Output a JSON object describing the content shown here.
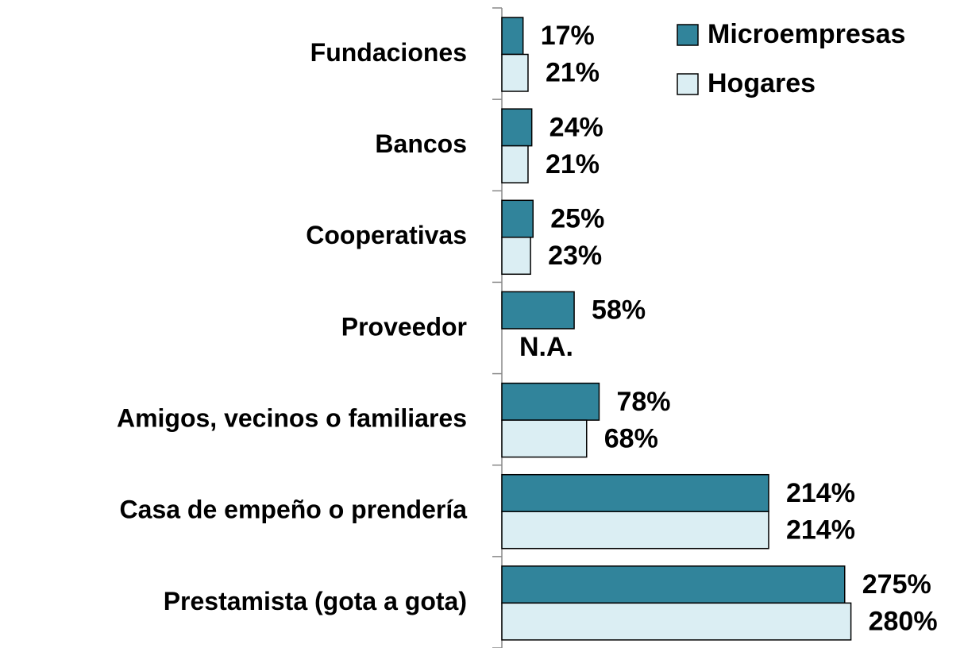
{
  "chart_data": {
    "type": "barh",
    "categories": [
      "Fundaciones",
      "Bancos",
      "Cooperativas",
      "Proveedor",
      "Amigos, vecinos o familiares",
      "Casa de empeño o prendería",
      "Prestamista (gota a gota)"
    ],
    "series": [
      {
        "name": "Microempresas",
        "color": "#31849b",
        "values": [
          17,
          24,
          25,
          58,
          78,
          214,
          275
        ],
        "value_labels": [
          "17%",
          "24%",
          "25%",
          "58%",
          "78%",
          "214%",
          "275%"
        ]
      },
      {
        "name": "Hogares",
        "color": "#dbeef3",
        "values": [
          21,
          21,
          23,
          null,
          68,
          214,
          280
        ],
        "value_labels": [
          "21%",
          "21%",
          "23%",
          "N.A.",
          "68%",
          "214%",
          "280%"
        ]
      }
    ],
    "xlim": [
      0,
      300
    ],
    "legend": "top-right"
  }
}
